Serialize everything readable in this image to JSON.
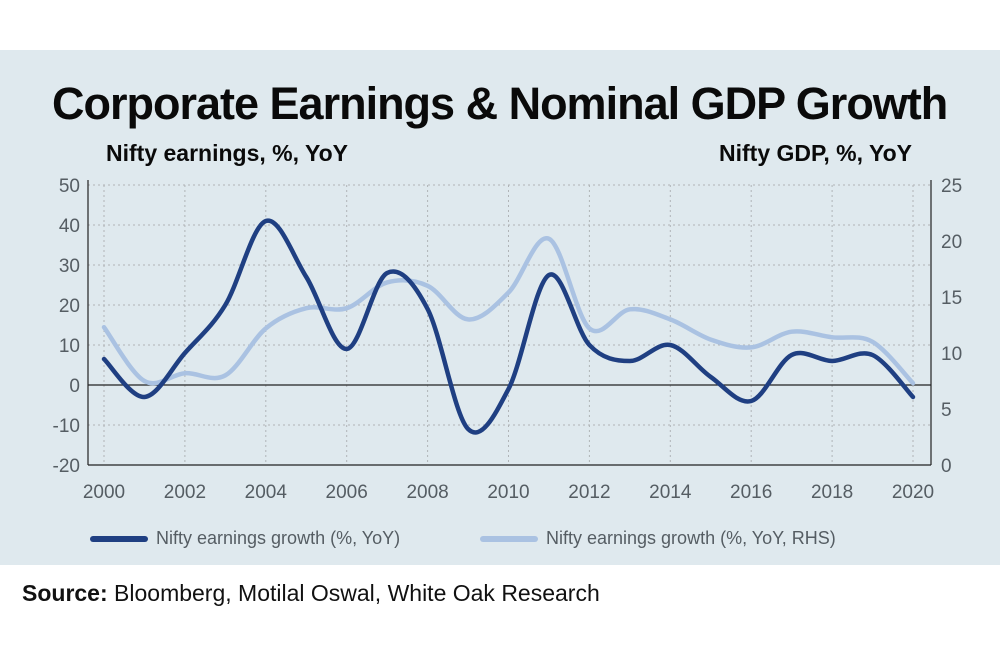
{
  "chart_data": {
    "type": "line",
    "title": "Corporate Earnings & Nominal GDP Growth",
    "ylabel": "Nifty earnings, %, YoY",
    "y2label": "Nifty GDP, %, YoY",
    "ylim": [
      -20,
      50
    ],
    "y2lim": [
      0,
      25
    ],
    "yticks": [
      -20,
      -10,
      0,
      10,
      20,
      30,
      40,
      50
    ],
    "y2ticks": [
      0,
      5,
      10,
      15,
      20,
      25
    ],
    "xticks": [
      2000,
      2002,
      2004,
      2006,
      2008,
      2010,
      2012,
      2014,
      2016,
      2018,
      2020
    ],
    "xlim": [
      2000,
      2020
    ],
    "series": [
      {
        "name": "Nifty earnings growth (%, YoY)",
        "axis": "left",
        "color": "#1f3f82",
        "x": [
          2000,
          2001,
          2002,
          2003,
          2004,
          2005,
          2006,
          2007,
          2008,
          2009,
          2010,
          2011,
          2012,
          2013,
          2014,
          2015,
          2016,
          2017,
          2018,
          2019,
          2020
        ],
        "values": [
          6.5,
          -3,
          8,
          20,
          41,
          27,
          9,
          28,
          19,
          -11,
          -1,
          27.5,
          10,
          6,
          10,
          2,
          -4,
          7.5,
          6,
          7.5,
          -3
        ]
      },
      {
        "name": "Nifty earnings growth (%, YoY, RHS)",
        "axis": "right",
        "color": "#aac2e2",
        "x": [
          2000,
          2001,
          2002,
          2003,
          2004,
          2005,
          2006,
          2007,
          2008,
          2009,
          2010,
          2011,
          2012,
          2013,
          2014,
          2015,
          2016,
          2017,
          2018,
          2019,
          2020
        ],
        "values": [
          12.3,
          7.5,
          8.2,
          8,
          12.2,
          14,
          14,
          16.3,
          16,
          13,
          15.4,
          20.2,
          12.2,
          13.9,
          13,
          11.2,
          10.5,
          11.9,
          11.4,
          11,
          7.3
        ]
      }
    ]
  },
  "legend": {
    "s1": "Nifty earnings growth (%, YoY)",
    "s2": "Nifty earnings growth (%, YoY, RHS)"
  },
  "source": {
    "label": "Source:",
    "text": " Bloomberg, Motilal Oswal, White Oak Research"
  },
  "colors": {
    "panel": "#dfe9ee",
    "grid": "#b0b4b7",
    "series1": "#1f3f82",
    "series2": "#aac2e2"
  }
}
